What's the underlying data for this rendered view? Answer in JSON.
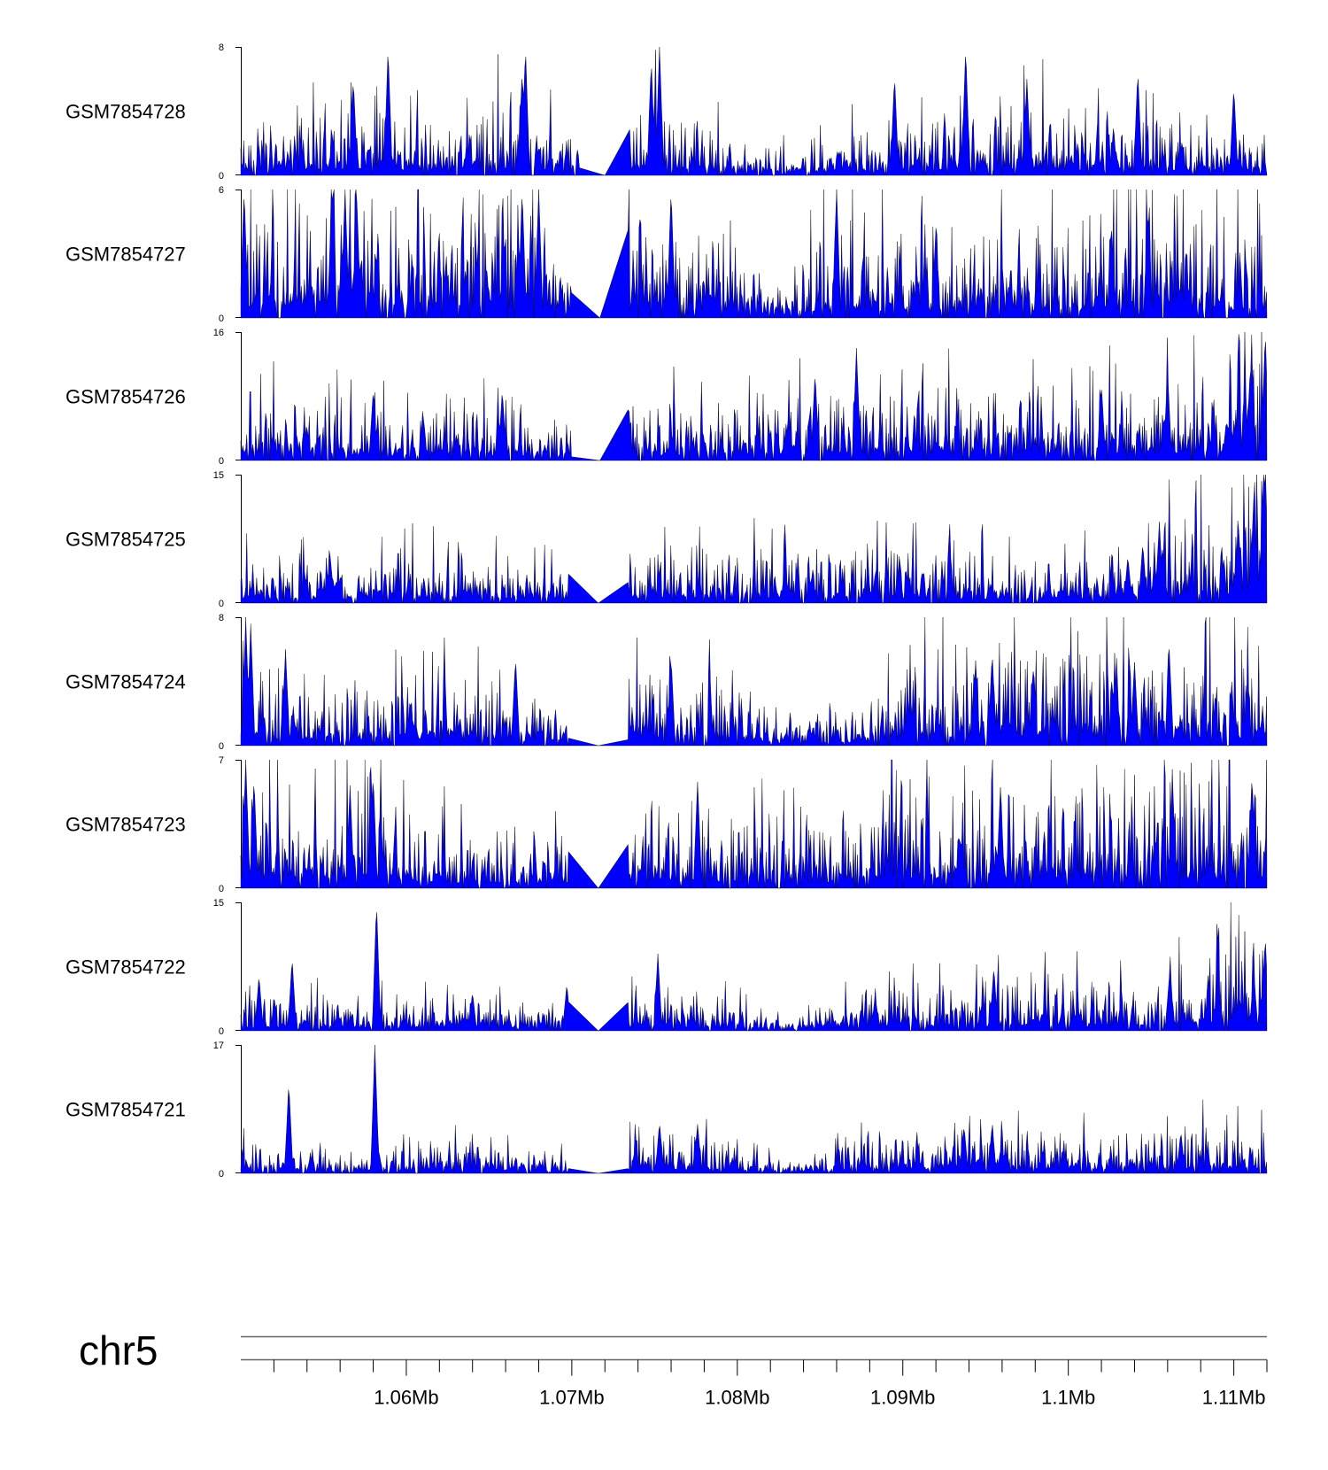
{
  "chart_data": {
    "type": "area",
    "title": "",
    "chromosome": "chr5",
    "x_range_bp": [
      1050000,
      1112000
    ],
    "x_ticks": [
      1060000,
      1070000,
      1080000,
      1090000,
      1100000,
      1110000
    ],
    "x_tick_labels": [
      "1.06Mb",
      "1.07Mb",
      "1.08Mb",
      "1.09Mb",
      "1.1Mb",
      "1.11Mb"
    ],
    "minor_tick_step_bp": 2000,
    "fill_color": "#0000ff",
    "tracks": [
      {
        "name": "GSM7854728",
        "ymax": 8,
        "ymax_label": "8",
        "ymin_label": "0",
        "gap": [
          1070500,
          1073500
        ],
        "seed": 101,
        "profile": [
          [
            1050000,
            1.2
          ],
          [
            1056000,
            1.8
          ],
          [
            1058000,
            2.0
          ],
          [
            1062000,
            1.0
          ],
          [
            1067000,
            2.2
          ],
          [
            1070000,
            1.0
          ],
          [
            1075000,
            2.0
          ],
          [
            1080000,
            1.0
          ],
          [
            1083000,
            0.6
          ],
          [
            1090000,
            1.6
          ],
          [
            1095000,
            2.0
          ],
          [
            1100000,
            1.6
          ],
          [
            1105000,
            1.6
          ],
          [
            1112000,
            1.2
          ]
        ],
        "peaks": [
          [
            1058900,
            8
          ],
          [
            1067200,
            8
          ],
          [
            1075300,
            8
          ],
          [
            1093800,
            8
          ],
          [
            1067000,
            6.5
          ],
          [
            1056800,
            6
          ],
          [
            1074800,
            7.2
          ],
          [
            1104200,
            6.5
          ],
          [
            1110000,
            5.5
          ],
          [
            1097500,
            6
          ],
          [
            1089500,
            6.2
          ]
        ]
      },
      {
        "name": "GSM7854727",
        "ymax": 6,
        "ymax_label": "6",
        "ymin_label": "0",
        "gap": [
          1070000,
          1073400
        ],
        "seed": 202,
        "profile": [
          [
            1050000,
            1.8
          ],
          [
            1055000,
            2.8
          ],
          [
            1057000,
            3.0
          ],
          [
            1060000,
            2.0
          ],
          [
            1065000,
            2.4
          ],
          [
            1069000,
            2.0
          ],
          [
            1070000,
            1.0
          ],
          [
            1074000,
            2.0
          ],
          [
            1080000,
            1.6
          ],
          [
            1083000,
            0.6
          ],
          [
            1085000,
            1.6
          ],
          [
            1090000,
            1.6
          ],
          [
            1100000,
            1.6
          ],
          [
            1105000,
            2.2
          ],
          [
            1112000,
            1.5
          ]
        ],
        "peaks": [
          [
            1050200,
            6
          ],
          [
            1055500,
            6
          ],
          [
            1056300,
            6
          ],
          [
            1057000,
            5.8
          ],
          [
            1067000,
            6
          ],
          [
            1068000,
            6
          ],
          [
            1076000,
            6
          ],
          [
            1086000,
            6
          ],
          [
            1104800,
            5
          ],
          [
            1102600,
            4.4
          ],
          [
            1092000,
            4.2
          ]
        ]
      },
      {
        "name": "GSM7854726",
        "ymax": 16,
        "ymax_label": "16",
        "ymin_label": "0",
        "gap": [
          1070000,
          1073400
        ],
        "seed": 303,
        "profile": [
          [
            1050000,
            3.0
          ],
          [
            1055000,
            3.0
          ],
          [
            1060000,
            3.0
          ],
          [
            1065000,
            3.0
          ],
          [
            1070000,
            1.5
          ],
          [
            1074000,
            2.8
          ],
          [
            1080000,
            3.0
          ],
          [
            1085000,
            3.5
          ],
          [
            1090000,
            3.5
          ],
          [
            1100000,
            3.5
          ],
          [
            1108000,
            4.0
          ],
          [
            1112000,
            8.0
          ]
        ],
        "peaks": [
          [
            1111900,
            16
          ],
          [
            1087200,
            14
          ],
          [
            1084700,
            11
          ],
          [
            1106000,
            11
          ],
          [
            1111000,
            12
          ],
          [
            1065800,
            8.8
          ],
          [
            1058000,
            8.8
          ],
          [
            1102000,
            9.5
          ]
        ]
      },
      {
        "name": "GSM7854725",
        "ymax": 15,
        "ymax_label": "15",
        "ymin_label": "0",
        "gap": [
          1069800,
          1073400
        ],
        "seed": 404,
        "profile": [
          [
            1050000,
            2.0
          ],
          [
            1060000,
            2.5
          ],
          [
            1070000,
            1.5
          ],
          [
            1074000,
            2.5
          ],
          [
            1080000,
            2.5
          ],
          [
            1090000,
            2.5
          ],
          [
            1100000,
            2.0
          ],
          [
            1104000,
            3.0
          ],
          [
            1108000,
            4.5
          ],
          [
            1110000,
            5.0
          ],
          [
            1112000,
            9.0
          ]
        ],
        "peaks": [
          [
            1111800,
            15
          ],
          [
            1111200,
            12
          ],
          [
            1105500,
            9.5
          ],
          [
            1104500,
            7
          ],
          [
            1110300,
            8.5
          ],
          [
            1103600,
            5.5
          ],
          [
            1055400,
            5.5
          ]
        ]
      },
      {
        "name": "GSM7854724",
        "ymax": 8,
        "ymax_label": "8",
        "ymin_label": "0",
        "gap": [
          1069800,
          1073400
        ],
        "seed": 505,
        "profile": [
          [
            1050000,
            2.0
          ],
          [
            1053000,
            1.5
          ],
          [
            1058000,
            1.8
          ],
          [
            1065000,
            1.5
          ],
          [
            1070000,
            1.0
          ],
          [
            1074000,
            2.0
          ],
          [
            1080000,
            1.6
          ],
          [
            1083000,
            0.6
          ],
          [
            1088000,
            1.0
          ],
          [
            1092000,
            2.5
          ],
          [
            1096000,
            2.5
          ],
          [
            1100000,
            2.5
          ],
          [
            1104000,
            2.5
          ],
          [
            1108000,
            2.2
          ],
          [
            1112000,
            2.2
          ]
        ],
        "peaks": [
          [
            1050300,
            8
          ],
          [
            1050600,
            7.6
          ],
          [
            1052700,
            6
          ],
          [
            1076000,
            5.5
          ],
          [
            1066600,
            5.5
          ],
          [
            1095400,
            5.8
          ],
          [
            1106100,
            6
          ],
          [
            1094400,
            5.3
          ],
          [
            1104000,
            5.2
          ],
          [
            1097900,
            5
          ]
        ]
      },
      {
        "name": "GSM7854723",
        "ymax": 7,
        "ymax_label": "7",
        "ymin_label": "0",
        "gap": [
          1069800,
          1073400
        ],
        "seed": 606,
        "profile": [
          [
            1050000,
            2.5
          ],
          [
            1055000,
            1.8
          ],
          [
            1058000,
            2.0
          ],
          [
            1064000,
            1.2
          ],
          [
            1070000,
            1.0
          ],
          [
            1074000,
            1.8
          ],
          [
            1080000,
            1.5
          ],
          [
            1085000,
            1.5
          ],
          [
            1090000,
            2.5
          ],
          [
            1096000,
            2.2
          ],
          [
            1100000,
            2.2
          ],
          [
            1105000,
            2.4
          ],
          [
            1112000,
            2.6
          ]
        ],
        "peaks": [
          [
            1050300,
            7
          ],
          [
            1050800,
            6
          ],
          [
            1058000,
            6.2
          ],
          [
            1077600,
            5.8
          ],
          [
            1111100,
            6.2
          ],
          [
            1106300,
            5.8
          ],
          [
            1095900,
            5.5
          ],
          [
            1056600,
            5.6
          ]
        ]
      },
      {
        "name": "GSM7854722",
        "ymax": 15,
        "ymax_label": "15",
        "ymin_label": "0",
        "gap": [
          1069800,
          1073400
        ],
        "seed": 707,
        "profile": [
          [
            1050000,
            1.5
          ],
          [
            1055000,
            1.5
          ],
          [
            1060000,
            1.5
          ],
          [
            1065000,
            2.0
          ],
          [
            1070000,
            1.0
          ],
          [
            1074000,
            2.0
          ],
          [
            1080000,
            1.5
          ],
          [
            1083000,
            0.4
          ],
          [
            1088000,
            2.0
          ],
          [
            1095000,
            2.2
          ],
          [
            1100000,
            2.5
          ],
          [
            1105000,
            2.0
          ],
          [
            1108000,
            3.5
          ],
          [
            1112000,
            5.0
          ]
        ],
        "peaks": [
          [
            1058200,
            15
          ],
          [
            1053100,
            8.5
          ],
          [
            1075200,
            9
          ],
          [
            1111900,
            11
          ],
          [
            1095500,
            7.5
          ],
          [
            1106100,
            6.2
          ],
          [
            1111200,
            7
          ],
          [
            1064000,
            4.5
          ],
          [
            1069700,
            5.5
          ],
          [
            1051100,
            6.5
          ]
        ]
      },
      {
        "name": "GSM7854721",
        "ymax": 17,
        "ymax_label": "17",
        "ymin_label": "0",
        "gap": [
          1069800,
          1073400
        ],
        "seed": 808,
        "profile": [
          [
            1050000,
            1.5
          ],
          [
            1055000,
            1.0
          ],
          [
            1060000,
            1.5
          ],
          [
            1065000,
            1.8
          ],
          [
            1070000,
            1.0
          ],
          [
            1074000,
            2.5
          ],
          [
            1078000,
            2.0
          ],
          [
            1083000,
            0.6
          ],
          [
            1088000,
            2.0
          ],
          [
            1095000,
            2.5
          ],
          [
            1100000,
            2.0
          ],
          [
            1105000,
            2.5
          ],
          [
            1112000,
            2.2
          ]
        ],
        "peaks": [
          [
            1058100,
            17
          ],
          [
            1052900,
            12
          ],
          [
            1075300,
            6.8
          ],
          [
            1077600,
            6.5
          ],
          [
            1095400,
            6.5
          ],
          [
            1093700,
            6.3
          ],
          [
            1106800,
            5.5
          ]
        ]
      }
    ]
  }
}
